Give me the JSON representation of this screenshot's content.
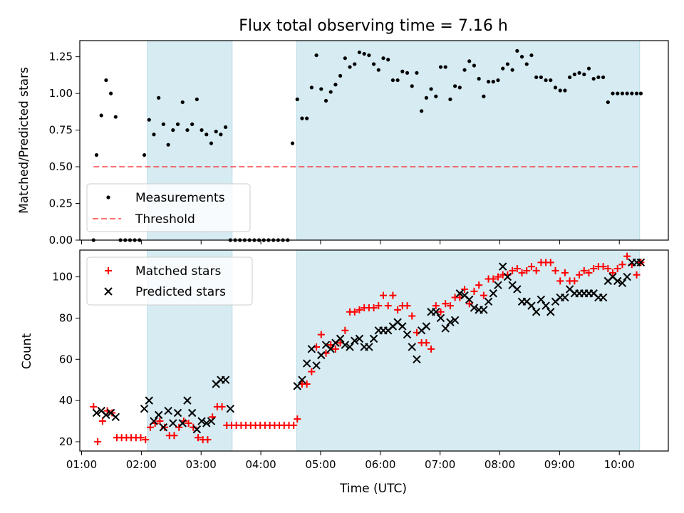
{
  "title": "Flux total observing time = 7.16 h",
  "colors": {
    "band": "#add8e6",
    "threshold": "#ff0000",
    "matched": "#ff0000",
    "predicted": "#000000",
    "points": "#000000"
  },
  "chart_data": [
    {
      "type": "scatter",
      "ylabel": "Matched/Predicted stars",
      "ylim": [
        0,
        1.36
      ],
      "yticks": [
        0.0,
        0.25,
        0.5,
        0.75,
        1.0,
        1.25
      ],
      "ytick_labels": [
        "0.00",
        "0.25",
        "0.50",
        "0.75",
        "1.00",
        "1.25"
      ],
      "threshold": {
        "value": 0.5,
        "x_start": 1.2,
        "x_end": 10.34
      },
      "series": [
        {
          "name": "Measurements",
          "x": [
            1.2,
            1.25,
            1.33,
            1.41,
            1.49,
            1.57,
            1.65,
            1.73,
            1.81,
            1.89,
            1.97,
            2.05,
            2.13,
            2.21,
            2.29,
            2.37,
            2.45,
            2.53,
            2.61,
            2.69,
            2.77,
            2.85,
            2.93,
            3.01,
            3.09,
            3.17,
            3.25,
            3.33,
            3.41,
            3.49,
            3.57,
            3.65,
            3.73,
            3.81,
            3.89,
            3.97,
            4.05,
            4.13,
            4.21,
            4.29,
            4.37,
            4.45,
            4.53,
            4.61,
            4.69,
            4.77,
            4.85,
            4.93,
            5.01,
            5.09,
            5.17,
            5.25,
            5.33,
            5.41,
            5.49,
            5.57,
            5.65,
            5.73,
            5.81,
            5.89,
            5.97,
            6.05,
            6.13,
            6.21,
            6.29,
            6.37,
            6.45,
            6.53,
            6.61,
            6.69,
            6.77,
            6.85,
            6.93,
            7.01,
            7.09,
            7.17,
            7.25,
            7.33,
            7.41,
            7.49,
            7.57,
            7.65,
            7.73,
            7.81,
            7.89,
            7.97,
            8.05,
            8.13,
            8.21,
            8.29,
            8.37,
            8.45,
            8.53,
            8.61,
            8.69,
            8.77,
            8.85,
            8.93,
            9.01,
            9.09,
            9.17,
            9.25,
            9.33,
            9.41,
            9.49,
            9.57,
            9.65,
            9.73,
            9.81,
            9.89,
            9.97,
            10.05,
            10.13,
            10.21,
            10.29,
            10.36
          ],
          "y": [
            0.0,
            0.58,
            0.85,
            1.09,
            1.0,
            0.84,
            0.0,
            0.0,
            0.0,
            0.0,
            0.0,
            0.58,
            0.82,
            0.72,
            0.97,
            0.79,
            0.65,
            0.75,
            0.79,
            0.94,
            0.75,
            0.79,
            0.96,
            0.75,
            0.72,
            0.66,
            0.74,
            0.72,
            0.77,
            0.0,
            0.0,
            0.0,
            0.0,
            0.0,
            0.0,
            0.0,
            0.0,
            0.0,
            0.0,
            0.0,
            0.0,
            0.0,
            0.66,
            0.96,
            0.83,
            0.83,
            1.04,
            1.26,
            1.03,
            0.95,
            1.01,
            1.06,
            1.12,
            1.24,
            1.18,
            1.2,
            1.28,
            1.27,
            1.26,
            1.2,
            1.16,
            1.24,
            1.23,
            1.09,
            1.09,
            1.15,
            1.14,
            1.05,
            1.14,
            0.88,
            0.97,
            1.03,
            0.98,
            1.18,
            1.18,
            0.96,
            1.05,
            1.04,
            1.16,
            1.22,
            1.19,
            1.1,
            0.98,
            1.08,
            1.08,
            1.09,
            1.17,
            1.2,
            1.16,
            1.29,
            1.25,
            1.2,
            1.26,
            1.11,
            1.11,
            1.09,
            1.09,
            1.04,
            1.02,
            1.02,
            1.11,
            1.13,
            1.14,
            1.13,
            1.17,
            1.1,
            1.11,
            1.11,
            0.94,
            1.0,
            1.0,
            1.0,
            1.0,
            1.0,
            1.0,
            1.0
          ]
        }
      ],
      "legend": {
        "entries": [
          "Measurements",
          "Threshold"
        ],
        "placement": "lower-left"
      }
    },
    {
      "type": "scatter",
      "xlabel": "Time (UTC)",
      "ylabel": "Count",
      "ylim": [
        15.5,
        113
      ],
      "yticks": [
        20,
        40,
        60,
        80,
        100
      ],
      "ytick_labels": [
        "20",
        "40",
        "60",
        "80",
        "100"
      ],
      "series": [
        {
          "name": "Matched stars",
          "x": [
            1.2,
            1.27,
            1.35,
            1.43,
            1.51,
            1.59,
            1.67,
            1.75,
            1.83,
            1.91,
            1.99,
            2.07,
            2.15,
            2.23,
            2.31,
            2.39,
            2.47,
            2.55,
            2.63,
            2.71,
            2.79,
            2.87,
            2.95,
            3.03,
            3.11,
            3.19,
            3.27,
            3.35,
            3.43,
            3.51,
            3.59,
            3.67,
            3.75,
            3.83,
            3.91,
            3.99,
            4.07,
            4.15,
            4.23,
            4.31,
            4.39,
            4.47,
            4.55,
            4.61,
            4.69,
            4.77,
            4.85,
            4.93,
            5.01,
            5.09,
            5.17,
            5.25,
            5.33,
            5.41,
            5.49,
            5.57,
            5.65,
            5.73,
            5.81,
            5.89,
            5.97,
            6.05,
            6.13,
            6.21,
            6.29,
            6.37,
            6.45,
            6.53,
            6.61,
            6.69,
            6.77,
            6.85,
            6.93,
            7.01,
            7.09,
            7.17,
            7.25,
            7.33,
            7.41,
            7.49,
            7.57,
            7.65,
            7.73,
            7.81,
            7.89,
            7.97,
            8.05,
            8.13,
            8.21,
            8.29,
            8.37,
            8.45,
            8.53,
            8.61,
            8.69,
            8.77,
            8.85,
            8.93,
            9.01,
            9.09,
            9.17,
            9.25,
            9.33,
            9.41,
            9.49,
            9.57,
            9.65,
            9.73,
            9.81,
            9.89,
            9.97,
            10.05,
            10.13,
            10.21,
            10.29,
            10.36
          ],
          "y": [
            37,
            20,
            30,
            35,
            34,
            22,
            22,
            22,
            22,
            22,
            22,
            21,
            27,
            29,
            30,
            27,
            23,
            23,
            27,
            30,
            29,
            27,
            22,
            21,
            21,
            32,
            37,
            37,
            28,
            28,
            28,
            28,
            28,
            28,
            28,
            28,
            28,
            28,
            28,
            28,
            28,
            28,
            28,
            31,
            48,
            48,
            54,
            66,
            72,
            63,
            67,
            65,
            68,
            74,
            83,
            83,
            84,
            85,
            85,
            85,
            86,
            91,
            86,
            91,
            84,
            86,
            86,
            81,
            73,
            68,
            68,
            65,
            86,
            83,
            87,
            86,
            90,
            90,
            94,
            87,
            93,
            96,
            91,
            99,
            99,
            100,
            101,
            101,
            103,
            104,
            102,
            103,
            105,
            103,
            107,
            107,
            107,
            103,
            98,
            102,
            98,
            98,
            101,
            103,
            102,
            104,
            105,
            105,
            104,
            102,
            104,
            106,
            110,
            106,
            101,
            107
          ]
        },
        {
          "name": "Predicted stars",
          "x": [
            1.25,
            1.33,
            1.41,
            1.49,
            1.57,
            2.05,
            2.13,
            2.21,
            2.29,
            2.37,
            2.45,
            2.53,
            2.61,
            2.69,
            2.77,
            2.85,
            2.93,
            3.01,
            3.09,
            3.17,
            3.25,
            3.33,
            3.41,
            3.49,
            4.61,
            4.69,
            4.77,
            4.85,
            4.93,
            5.01,
            5.09,
            5.17,
            5.25,
            5.33,
            5.41,
            5.49,
            5.57,
            5.65,
            5.73,
            5.81,
            5.89,
            5.97,
            6.05,
            6.13,
            6.21,
            6.29,
            6.37,
            6.45,
            6.53,
            6.61,
            6.69,
            6.77,
            6.85,
            6.93,
            7.01,
            7.09,
            7.17,
            7.25,
            7.33,
            7.41,
            7.49,
            7.57,
            7.65,
            7.73,
            7.81,
            7.89,
            7.97,
            8.05,
            8.13,
            8.21,
            8.29,
            8.37,
            8.45,
            8.53,
            8.61,
            8.69,
            8.77,
            8.85,
            8.93,
            9.01,
            9.09,
            9.17,
            9.25,
            9.33,
            9.41,
            9.49,
            9.57,
            9.65,
            9.73,
            9.81,
            9.89,
            9.97,
            10.05,
            10.13,
            10.21,
            10.29,
            10.36
          ],
          "y": [
            34,
            35,
            33,
            34,
            32,
            36,
            40,
            30,
            33,
            27,
            35,
            29,
            34,
            29,
            40,
            34,
            26,
            30,
            29,
            30,
            48,
            50,
            50,
            36,
            47,
            50,
            58,
            65,
            57,
            62,
            67,
            65,
            68,
            70,
            67,
            66,
            69,
            70,
            66,
            66,
            70,
            74,
            74,
            74,
            76,
            78,
            76,
            72,
            66,
            60,
            74,
            76,
            83,
            83,
            80,
            75,
            78,
            79,
            92,
            91,
            89,
            85,
            84,
            84,
            88,
            92,
            96,
            105,
            100,
            96,
            94,
            88,
            88,
            86,
            83,
            89,
            86,
            83,
            88,
            90,
            90,
            94,
            92,
            92,
            92,
            92,
            92,
            90,
            90,
            98,
            100,
            98,
            97,
            100,
            107,
            107,
            107
          ]
        }
      ],
      "legend": {
        "entries": [
          "Matched stars",
          "Predicted stars"
        ],
        "placement": "upper-left"
      }
    }
  ],
  "shared": {
    "xlim": [
      0.97,
      10.82
    ],
    "xticks": [
      1,
      2,
      3,
      4,
      5,
      6,
      7,
      8,
      9,
      10
    ],
    "xtick_labels": [
      "01:00",
      "02:00",
      "03:00",
      "04:00",
      "05:00",
      "06:00",
      "07:00",
      "08:00",
      "09:00",
      "10:00"
    ],
    "shaded_intervals": [
      [
        2.1,
        3.52
      ],
      [
        4.6,
        10.34
      ]
    ],
    "grid": false
  }
}
